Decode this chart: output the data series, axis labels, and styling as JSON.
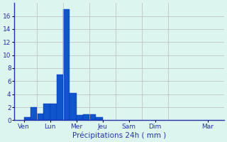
{
  "bar_data": [
    {
      "x": 1,
      "height": 0.0
    },
    {
      "x": 2,
      "height": 0.5
    },
    {
      "x": 3,
      "height": 2.0
    },
    {
      "x": 4,
      "height": 1.0
    },
    {
      "x": 5,
      "height": 2.5
    },
    {
      "x": 6,
      "height": 2.5
    },
    {
      "x": 7,
      "height": 7.0
    },
    {
      "x": 8,
      "height": 17.0
    },
    {
      "x": 9,
      "height": 4.2
    },
    {
      "x": 10,
      "height": 0.8
    },
    {
      "x": 11,
      "height": 0.9
    },
    {
      "x": 12,
      "height": 0.9
    },
    {
      "x": 13,
      "height": 0.5
    }
  ],
  "xtick_positions": [
    1.5,
    5.5,
    9.5,
    13.5,
    17.5,
    21.5,
    29.5
  ],
  "xtick_labels": [
    "Ven",
    "Lun",
    "Mer",
    "Jeu",
    "Sam",
    "Dim",
    "Mar"
  ],
  "bar_color": "#1155cc",
  "bar_edge_color": "#0033bb",
  "background_color": "#ddf5ef",
  "grid_color": "#bbbbbb",
  "xlabel": "Précipitations 24h ( mm )",
  "ylim": [
    0,
    18
  ],
  "xlim": [
    0,
    32
  ],
  "yticks": [
    0,
    2,
    4,
    6,
    8,
    10,
    12,
    14,
    16
  ],
  "bar_width": 1.0,
  "vline_positions": [
    0,
    3.5,
    7.5,
    11.5,
    15.5,
    19.5,
    23.5,
    32
  ]
}
